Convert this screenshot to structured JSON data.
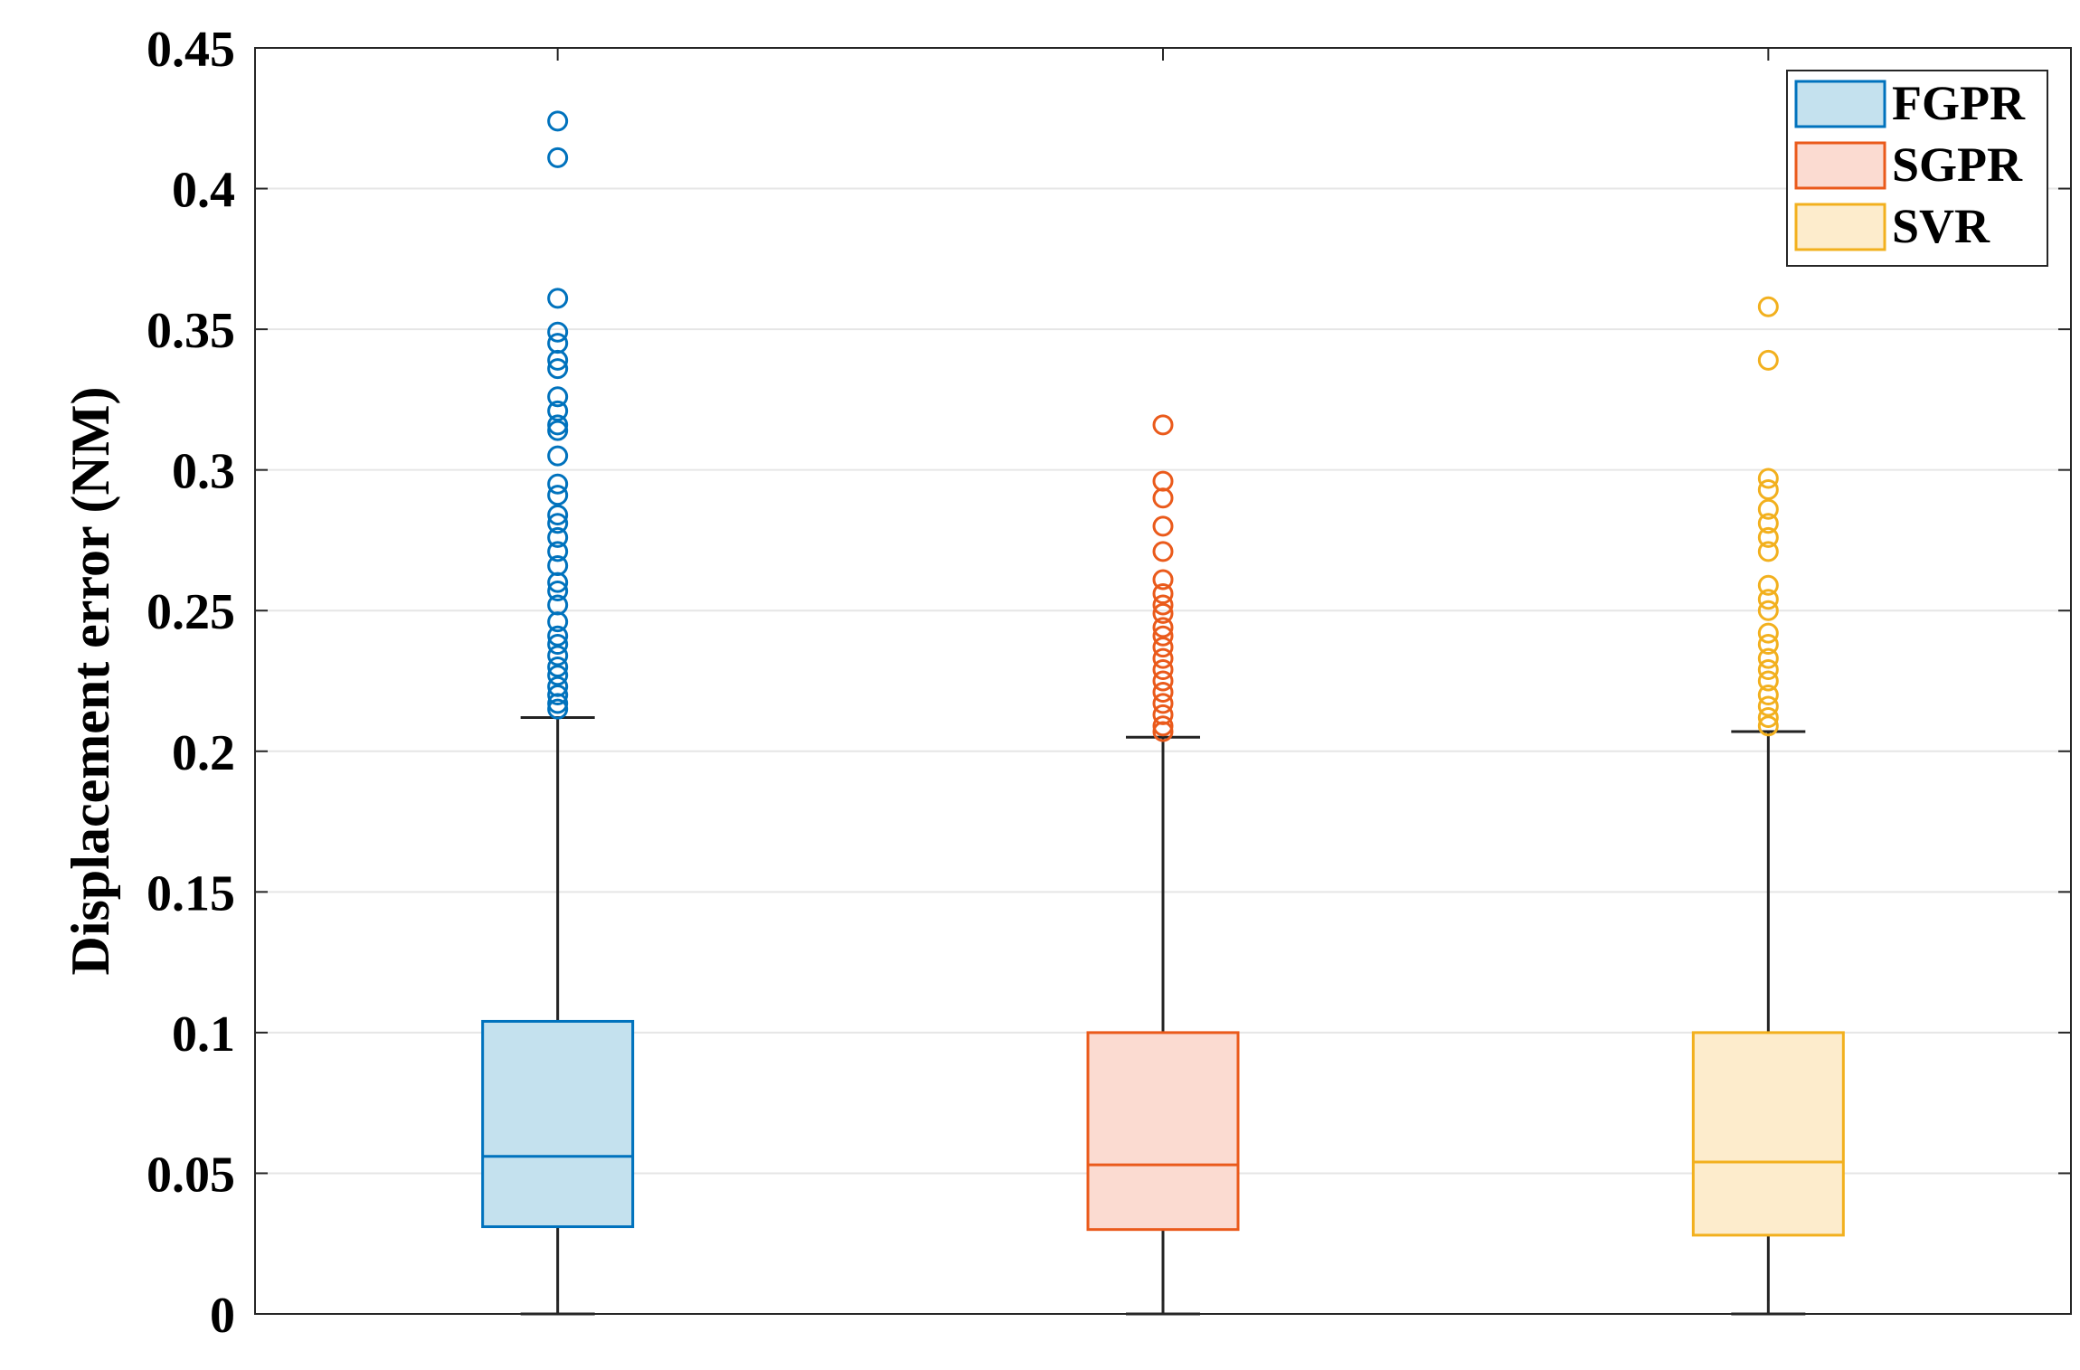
{
  "chart_data": {
    "type": "box",
    "ylabel": "Displacement error (NM)",
    "xlabel": "",
    "title": "",
    "ylim": [
      0,
      0.45
    ],
    "yticks": [
      0,
      0.05,
      0.1,
      0.15,
      0.2,
      0.25,
      0.3,
      0.35,
      0.4,
      0.45
    ],
    "ytick_labels": [
      "0",
      "0.05",
      "0.1",
      "0.15",
      "0.2",
      "0.25",
      "0.3",
      "0.35",
      "0.4",
      "0.45"
    ],
    "grid": "horizontal",
    "legend_position": "top-right",
    "series": [
      {
        "name": "FGPR",
        "color": "#0072BD",
        "fill": "#c4e1ee",
        "whisker_low": 0.0,
        "q1": 0.031,
        "median": 0.056,
        "q3": 0.104,
        "whisker_high": 0.212,
        "outliers": [
          0.424,
          0.411,
          0.361,
          0.349,
          0.345,
          0.339,
          0.336,
          0.326,
          0.321,
          0.316,
          0.314,
          0.305,
          0.295,
          0.291,
          0.284,
          0.281,
          0.276,
          0.271,
          0.266,
          0.26,
          0.257,
          0.252,
          0.246,
          0.241,
          0.238,
          0.234,
          0.23,
          0.227,
          0.223,
          0.22,
          0.217,
          0.215
        ]
      },
      {
        "name": "SGPR",
        "color": "#EA5A1B",
        "fill": "#fbdbd1",
        "whisker_low": 0.0,
        "q1": 0.03,
        "median": 0.053,
        "q3": 0.1,
        "whisker_high": 0.205,
        "outliers": [
          0.316,
          0.296,
          0.29,
          0.28,
          0.271,
          0.261,
          0.256,
          0.252,
          0.249,
          0.244,
          0.241,
          0.237,
          0.233,
          0.229,
          0.225,
          0.221,
          0.217,
          0.213,
          0.209,
          0.207
        ]
      },
      {
        "name": "SVR",
        "color": "#F2B01E",
        "fill": "#fdeccc",
        "whisker_low": 0.0,
        "q1": 0.028,
        "median": 0.054,
        "q3": 0.1,
        "whisker_high": 0.207,
        "outliers": [
          0.358,
          0.339,
          0.297,
          0.293,
          0.286,
          0.281,
          0.276,
          0.271,
          0.259,
          0.254,
          0.25,
          0.242,
          0.238,
          0.233,
          0.229,
          0.225,
          0.22,
          0.216,
          0.212,
          0.209
        ]
      }
    ]
  }
}
